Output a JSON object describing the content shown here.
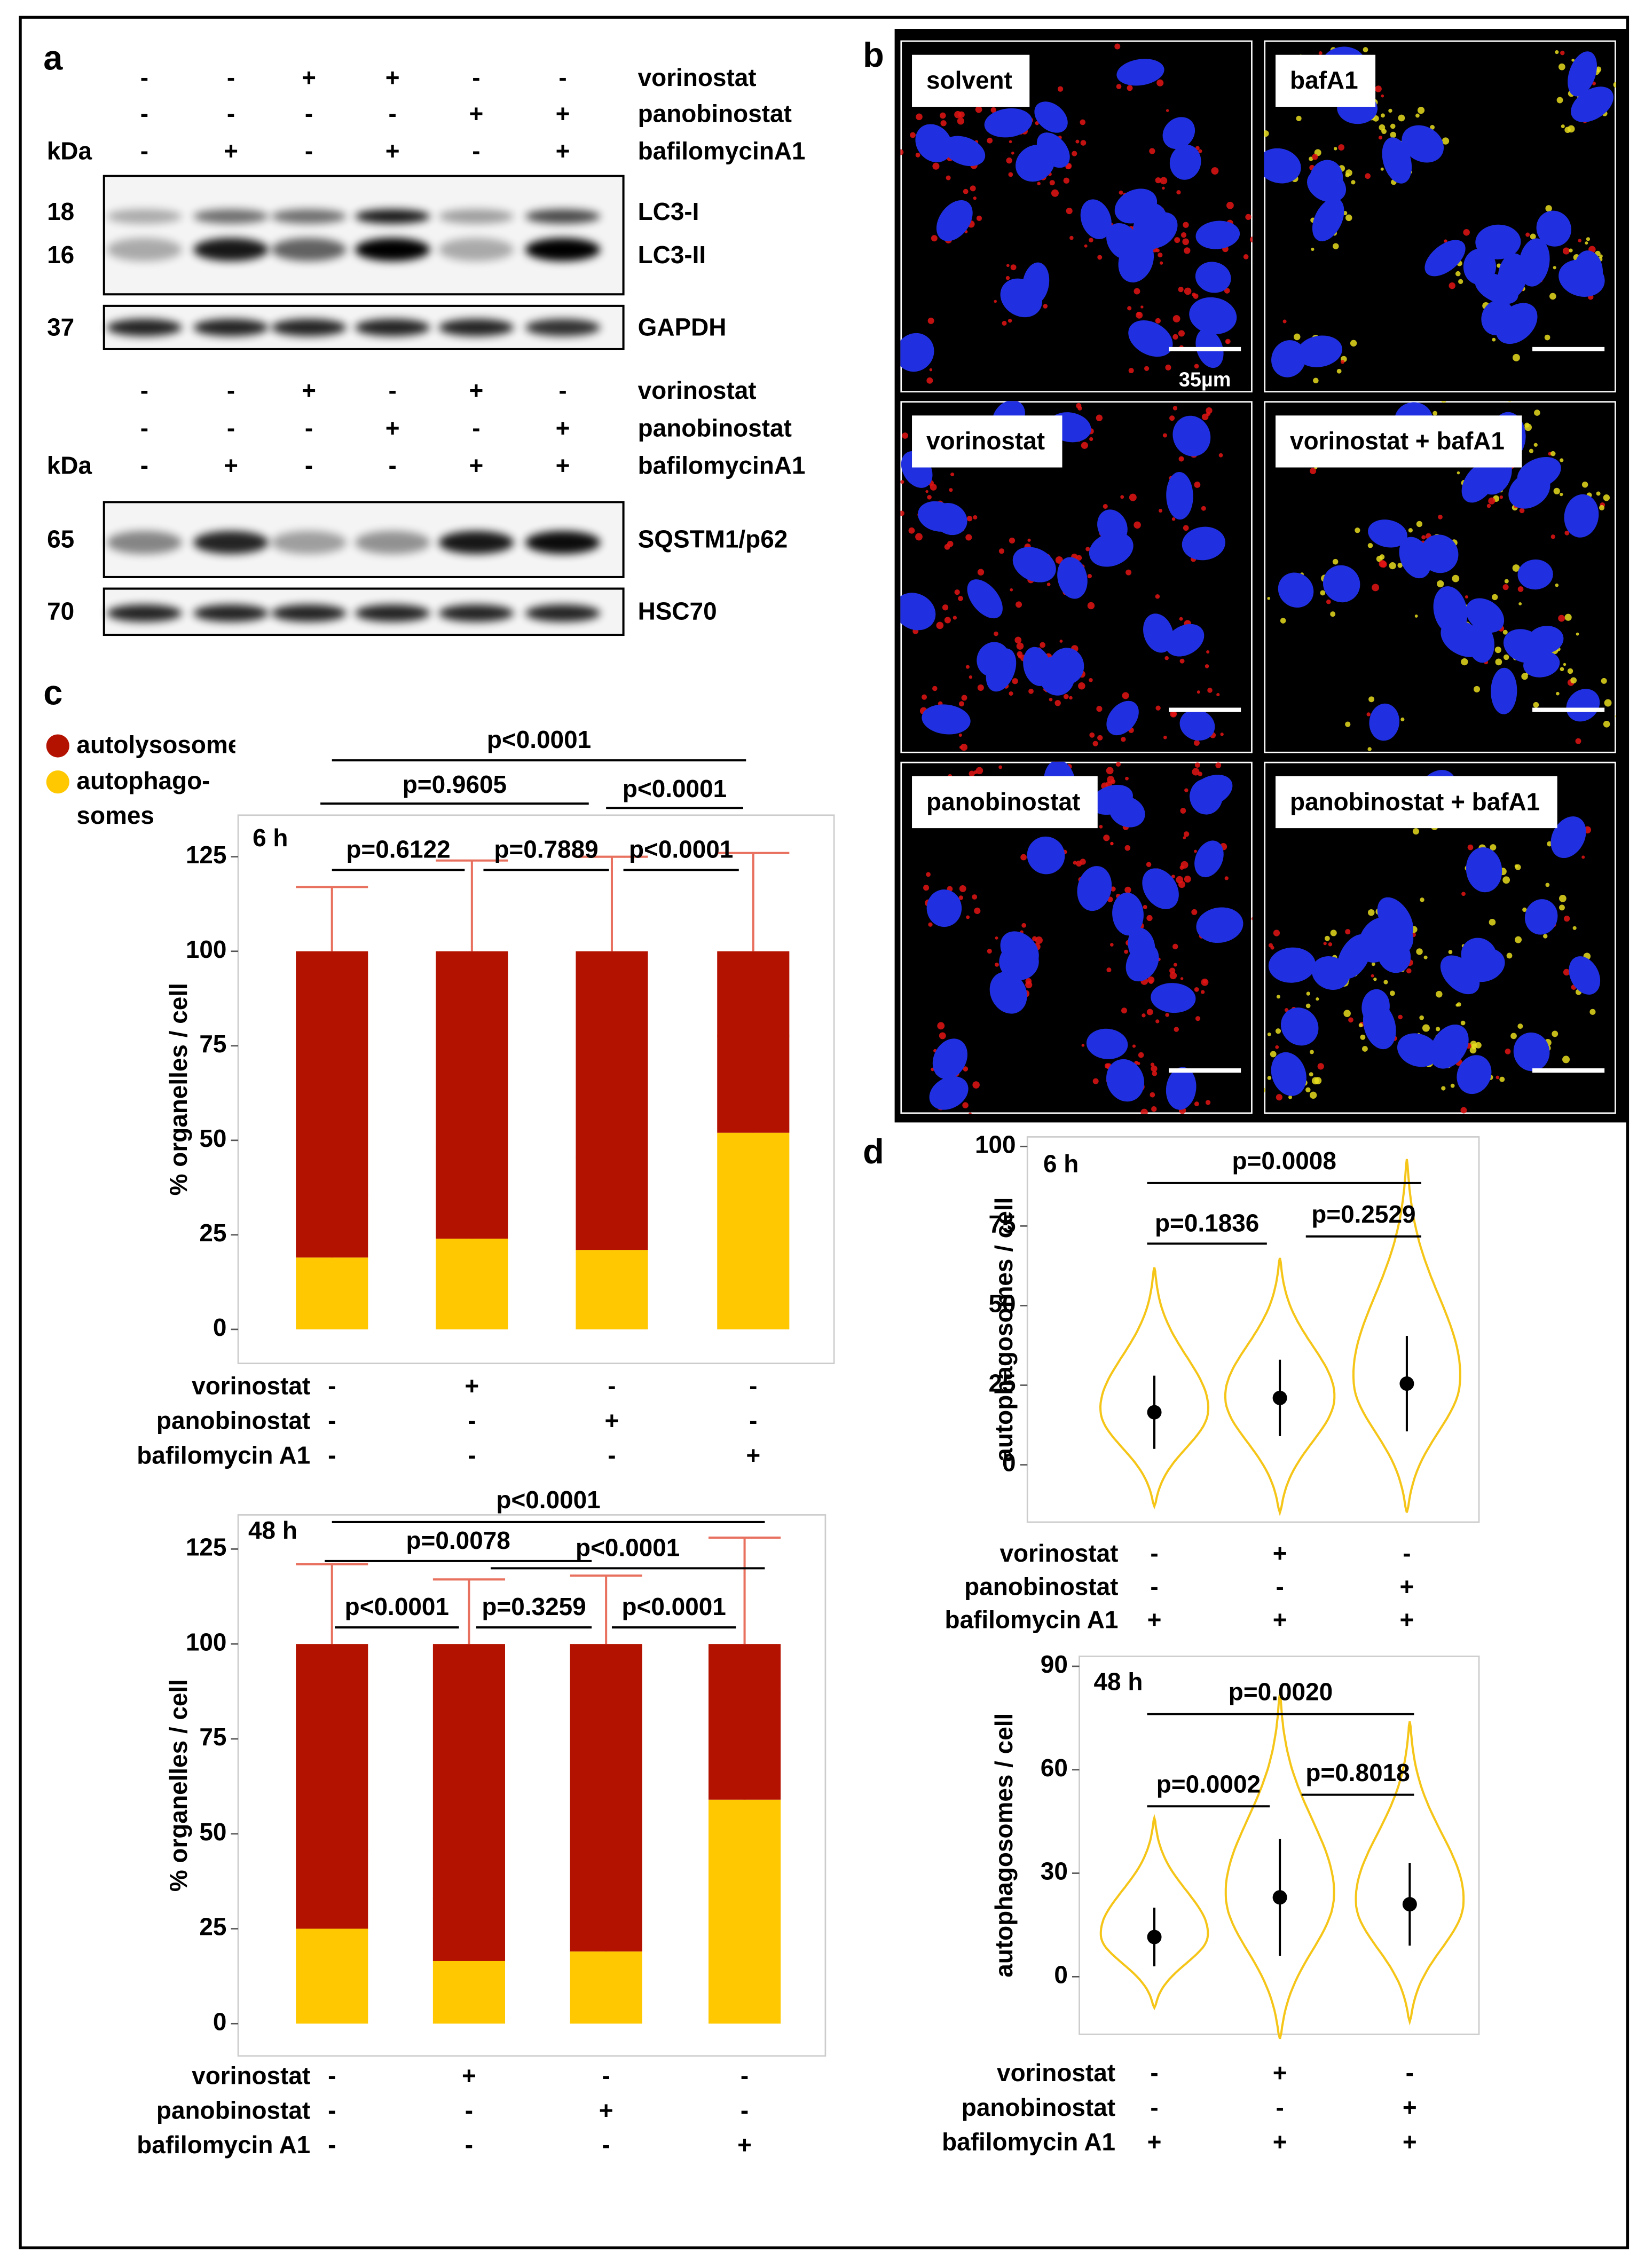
{
  "panels": {
    "a": {
      "label": "a",
      "blots": [
        {
          "kda_label": "kDa",
          "treatments": [
            {
              "name": "vorinostat",
              "signs": [
                "-",
                "-",
                "+",
                "+",
                "-",
                "-"
              ]
            },
            {
              "name": "panobinostat",
              "signs": [
                "-",
                "-",
                "-",
                "-",
                "+",
                "+"
              ]
            },
            {
              "name": "bafilomycinA1",
              "signs": [
                "-",
                "+",
                "-",
                "+",
                "-",
                "+"
              ]
            }
          ],
          "markers": [
            {
              "kda": 18,
              "band": "LC3-I"
            },
            {
              "kda": 16,
              "band": "LC3-II"
            },
            {
              "kda": 37,
              "band": "GAPDH"
            }
          ]
        },
        {
          "kda_label": "kDa",
          "treatments": [
            {
              "name": "vorinostat",
              "signs": [
                "-",
                "-",
                "+",
                "-",
                "+",
                "-"
              ]
            },
            {
              "name": "panobinostat",
              "signs": [
                "-",
                "-",
                "-",
                "+",
                "-",
                "+"
              ]
            },
            {
              "name": "bafilomycinA1",
              "signs": [
                "-",
                "+",
                "-",
                "-",
                "+",
                "+"
              ]
            }
          ],
          "markers": [
            {
              "kda": 65,
              "band": "SQSTM1/p62"
            },
            {
              "kda": 70,
              "band": "HSC70"
            }
          ]
        }
      ]
    },
    "b": {
      "label": "b",
      "images": [
        "solvent",
        "bafA1",
        "vorinostat",
        "vorinostat + bafA1",
        "panobinostat",
        "panobinostat + bafA1"
      ],
      "scale_bar": "35µm"
    },
    "c": {
      "label": "c"
    },
    "d": {
      "label": "d"
    }
  },
  "chart_data": [
    {
      "type": "bar",
      "stacked": true,
      "title": "6 h",
      "ylabel": "% organelles / cell",
      "series": [
        {
          "name": "autolysosomes",
          "color": "#b31200",
          "error_color": "#e8705e",
          "values": [
            81,
            76,
            79,
            48
          ],
          "errors": [
            17,
            24,
            25,
            26
          ]
        },
        {
          "name": "autophago-somes",
          "color": "#ffc800",
          "error_color": "#f0a020",
          "values": [
            19,
            24,
            21,
            52
          ],
          "errors": [
            16.5,
            24,
            24.5,
            25.5
          ]
        }
      ],
      "ylim": [
        -9,
        136
      ],
      "yticks": [
        0,
        25,
        50,
        75,
        100,
        125
      ],
      "annotations": [
        "p<0.0001",
        "p=0.9605",
        "p<0.0001",
        "p=0.6122",
        "p=0.7889",
        "p<0.0001"
      ],
      "treatments": [
        {
          "name": "vorinostat",
          "signs": [
            "-",
            "+",
            "-",
            "-"
          ]
        },
        {
          "name": "panobinostat",
          "signs": [
            "-",
            "-",
            "+",
            "-"
          ]
        },
        {
          "name": "bafilomycin A1",
          "signs": [
            "-",
            "-",
            "-",
            "+"
          ]
        }
      ]
    },
    {
      "type": "bar",
      "stacked": true,
      "title": "48 h",
      "ylabel": "% organelles / cell",
      "series": [
        {
          "color": "#b31200",
          "error_color": "#e8705e",
          "values": [
            75,
            83.5,
            81,
            41
          ],
          "errors": [
            21,
            17,
            18,
            28
          ]
        },
        {
          "color": "#ffc800",
          "error_color": "#f0a020",
          "values": [
            25,
            16.5,
            19,
            59
          ],
          "errors": [
            20.5,
            16.5,
            18,
            28
          ]
        }
      ],
      "ylim": [
        -8.5,
        134
      ],
      "yticks": [
        0,
        25,
        50,
        75,
        100,
        125
      ],
      "annotations": [
        "p<0.0001",
        "p=0.0078",
        "p<0.0001",
        "p<0.0001",
        "p=0.3259",
        "p<0.0001"
      ],
      "treatments": [
        {
          "name": "vorinostat",
          "signs": [
            "-",
            "+",
            "-",
            "-"
          ]
        },
        {
          "name": "panobinostat",
          "signs": [
            "-",
            "-",
            "+",
            "-"
          ]
        },
        {
          "name": "bafilomycin A1",
          "signs": [
            "-",
            "-",
            "-",
            "+"
          ]
        }
      ]
    },
    {
      "type": "violin",
      "title": "6 h",
      "ylabel": "autophagosomes / cell",
      "color": "#f5c518",
      "point_color": "#000000",
      "values": [
        16.5,
        21,
        25.5
      ],
      "errors": [
        11.5,
        12,
        15
      ],
      "min": [
        -13,
        -15,
        -15
      ],
      "max": [
        62,
        65,
        96
      ],
      "ylim": [
        -18,
        103
      ],
      "yticks": [
        0,
        25,
        50,
        75,
        100
      ],
      "annotations": [
        "p=0.0008",
        "p=0.1836",
        "p=0.2529"
      ],
      "treatments": [
        {
          "name": "vorinostat",
          "signs": [
            "-",
            "+",
            "-"
          ]
        },
        {
          "name": "panobinostat",
          "signs": [
            "-",
            "-",
            "+"
          ]
        },
        {
          "name": "bafilomycin A1",
          "signs": [
            "+",
            "+",
            "+"
          ]
        }
      ]
    },
    {
      "type": "violin",
      "title": "48 h",
      "ylabel": "autophagosomes / cell",
      "color": "#f5c518",
      "point_color": "#000000",
      "values": [
        11.5,
        23,
        21
      ],
      "errors": [
        8.5,
        17,
        12
      ],
      "min": [
        -9,
        -18,
        -13
      ],
      "max": [
        46,
        82,
        74
      ],
      "ylim": [
        -16.7,
        92.9
      ],
      "yticks": [
        0,
        30,
        60,
        90
      ],
      "annotations": [
        "p=0.0020",
        "p=0.0002",
        "p=0.8018"
      ],
      "treatments": [
        {
          "name": "vorinostat",
          "signs": [
            "-",
            "+",
            "-"
          ]
        },
        {
          "name": "panobinostat",
          "signs": [
            "-",
            "-",
            "+"
          ]
        },
        {
          "name": "bafilomycin A1",
          "signs": [
            "+",
            "+",
            "+"
          ]
        }
      ]
    }
  ]
}
